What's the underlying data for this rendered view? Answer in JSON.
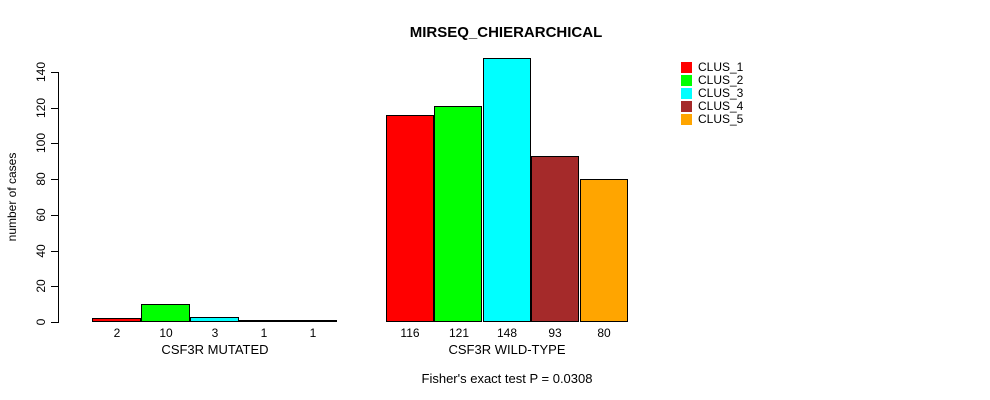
{
  "chart_data": {
    "type": "bar",
    "title": "MIRSEQ_CHIERARCHICAL",
    "ylabel": "number of cases",
    "ylim": [
      0,
      140
    ],
    "yticks": [
      0,
      20,
      40,
      60,
      80,
      100,
      120,
      140
    ],
    "grid": false,
    "legend_position": "top-right",
    "series": [
      {
        "name": "CLUS_1",
        "color": "#FF0000",
        "values": [
          2,
          116
        ]
      },
      {
        "name": "CLUS_2",
        "color": "#00FF00",
        "values": [
          10,
          121
        ]
      },
      {
        "name": "CLUS_3",
        "color": "#00FFFF",
        "values": [
          3,
          148
        ]
      },
      {
        "name": "CLUS_4",
        "color": "#A52A2A",
        "values": [
          1,
          93
        ]
      },
      {
        "name": "CLUS_5",
        "color": "#FFA500",
        "values": [
          1,
          80
        ]
      }
    ],
    "groups": [
      {
        "label": "CSF3R MUTATED",
        "values": [
          2,
          10,
          3,
          1,
          1
        ]
      },
      {
        "label": "CSF3R WILD-TYPE",
        "values": [
          116,
          121,
          148,
          93,
          80
        ]
      }
    ],
    "bar_value_labels": [
      [
        "2",
        "10",
        "3",
        "1",
        "1"
      ],
      [
        "116",
        "121",
        "148",
        "93",
        "80"
      ]
    ],
    "annotation": "Fisher's exact test P = 0.0308"
  }
}
